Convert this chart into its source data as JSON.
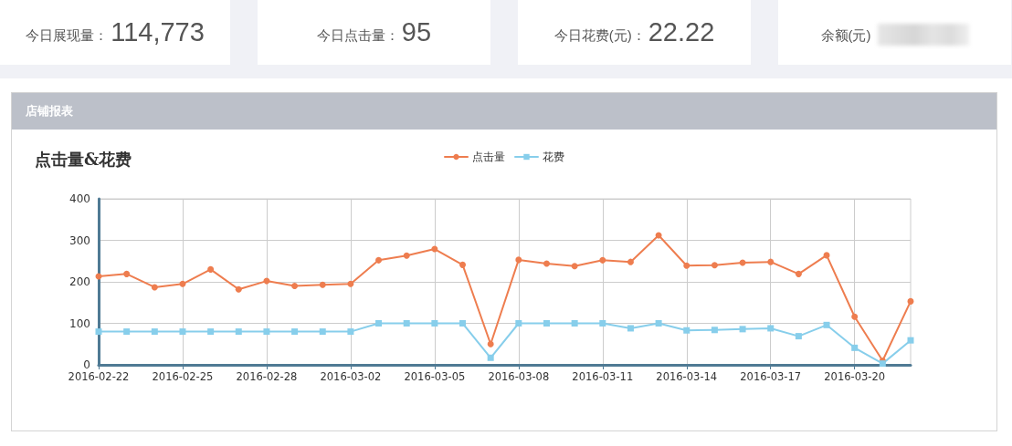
{
  "chart_data": [
    {
      "type": "other",
      "annotations": [
        "今日展现量：",
        "114,773",
        "今日点击量：",
        "95",
        "今日花费(元)：",
        "22.22",
        "余额(元)"
      ]
    },
    {
      "type": "line",
      "title": "点击量&花费",
      "annotations": [
        "店铺报表"
      ],
      "categories": [
        "2016-02-22",
        null,
        null,
        "2016-02-25",
        null,
        null,
        "2016-02-28",
        null,
        null,
        "2016-03-02",
        null,
        null,
        "2016-03-05",
        null,
        null,
        "2016-03-08",
        null,
        null,
        "2016-03-11",
        null,
        null,
        "2016-03-14",
        null,
        null,
        "2016-03-17",
        null,
        null,
        "2016-03-20",
        null,
        null
      ],
      "series": [
        {
          "name": "点击量",
          "color": "#ee7d4f",
          "marker": "circle",
          "values": [
            213,
            219,
            187,
            195,
            230,
            182,
            202,
            190,
            193,
            195,
            252,
            263,
            279,
            241,
            50,
            253,
            244,
            238,
            252,
            248,
            312,
            239,
            240,
            246,
            248,
            219,
            264,
            116,
            10,
            153
          ]
        },
        {
          "name": "花费",
          "color": "#87ceeb",
          "marker": "square",
          "values": [
            80,
            80,
            80,
            80,
            80,
            80,
            80,
            80,
            80,
            80,
            100,
            100,
            100,
            100,
            17,
            100,
            100,
            100,
            100,
            88,
            100,
            83,
            84,
            86,
            88,
            69,
            96,
            41,
            3,
            59
          ]
        }
      ],
      "ylim": [
        0,
        400
      ],
      "yticks": [
        0,
        100,
        200,
        300,
        400
      ],
      "grid": true,
      "legend": "top",
      "line_style": "solid"
    }
  ]
}
